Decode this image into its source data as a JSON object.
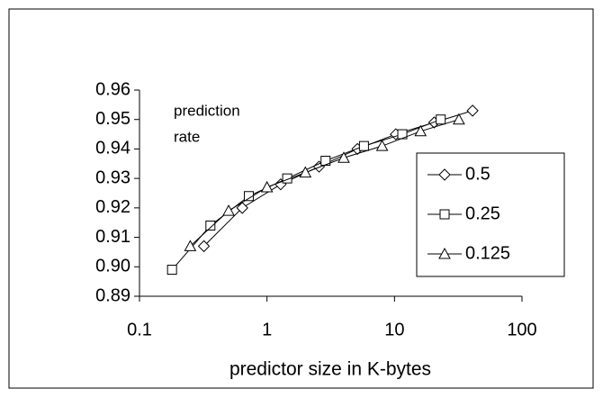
{
  "chart_data": {
    "type": "line",
    "annotation": [
      "prediction",
      "rate"
    ],
    "xlabel": "predictor size in K-bytes",
    "xscale": "log",
    "xlim": [
      0.1,
      100
    ],
    "xticks": [
      0.1,
      1,
      10,
      100
    ],
    "ylim": [
      0.89,
      0.96
    ],
    "yticks": [
      {
        "value": 0.89,
        "label": "0.89"
      },
      {
        "value": 0.9,
        "label": "0.90"
      },
      {
        "value": 0.91,
        "label": "0.91"
      },
      {
        "value": 0.92,
        "label": "0.92"
      },
      {
        "value": 0.93,
        "label": "0.93"
      },
      {
        "value": 0.94,
        "label": "0.94"
      },
      {
        "value": 0.95,
        "label": "0.95"
      },
      {
        "value": 0.96,
        "label": "0.96"
      }
    ],
    "legend": "right",
    "series": [
      {
        "name": "0.5",
        "color": "#000000",
        "marker": "diamond",
        "x": [
          0.32,
          0.64,
          1.28,
          2.56,
          5.12,
          10.24,
          20.48,
          40.96
        ],
        "values": [
          0.907,
          0.92,
          0.928,
          0.934,
          0.94,
          0.945,
          0.949,
          0.953
        ]
      },
      {
        "name": "0.25",
        "color": "#000000",
        "marker": "square",
        "x": [
          0.18,
          0.36,
          0.72,
          1.44,
          2.88,
          5.76,
          11.52,
          23.04
        ],
        "values": [
          0.899,
          0.914,
          0.924,
          0.93,
          0.936,
          0.941,
          0.945,
          0.95
        ]
      },
      {
        "name": "0.125",
        "color": "#000000",
        "marker": "triangle",
        "x": [
          0.25,
          0.5,
          1,
          2,
          4,
          8,
          16,
          32
        ],
        "values": [
          0.907,
          0.919,
          0.927,
          0.932,
          0.937,
          0.941,
          0.946,
          0.95
        ]
      }
    ]
  }
}
